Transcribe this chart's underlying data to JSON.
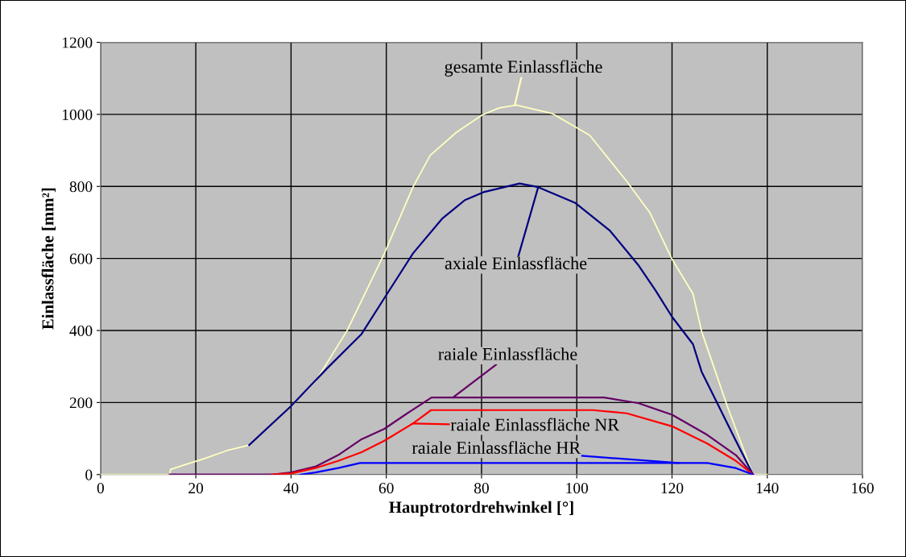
{
  "chart_data": {
    "type": "line",
    "xlabel": "Hauptrotordrehwinkel [°]",
    "ylabel": "Einlassfläche [mm²]",
    "xlim": [
      0,
      160
    ],
    "xticks": [
      0,
      20,
      40,
      60,
      80,
      100,
      120,
      140,
      160
    ],
    "ylim": [
      0,
      1200
    ],
    "yticks": [
      0,
      200,
      400,
      600,
      800,
      1000,
      1200
    ],
    "grid": true,
    "marker": "none",
    "line_style": "solid",
    "series": [
      {
        "color": "#ffffc0",
        "x": [
          0,
          14.5,
          14.7,
          17.4,
          22.2,
          26.4,
          31.2,
          35.5,
          40,
          45.1,
          51.7,
          59.6,
          65.6,
          69.2,
          74.7,
          80.1,
          83.7,
          87.3,
          94.9,
          102.7,
          110.5,
          115.4,
          120,
          124.4,
          126.2,
          131.6,
          137,
          140
        ],
        "values": [
          0,
          0,
          14,
          26,
          46,
          66,
          82,
          134,
          190,
          258,
          398,
          614,
          798,
          886,
          950,
          998,
          1018,
          1026,
          1002,
          942,
          814,
          726,
          598,
          502,
          398,
          190,
          0,
          0
        ]
      },
      {
        "color": "#000080",
        "x": [
          31.2,
          40,
          47.5,
          54.8,
          59.6,
          65.6,
          71.7,
          76.5,
          80.4,
          88,
          91.9,
          99.7,
          106.9,
          112.9,
          116.6,
          120,
          124.4,
          126.2,
          129.8,
          133.4,
          137
        ],
        "values": [
          82,
          190,
          294,
          390,
          490,
          614,
          710,
          762,
          784,
          808,
          798,
          754,
          678,
          582,
          510,
          438,
          362,
          286,
          190,
          94,
          0
        ]
      },
      {
        "color": "#660066",
        "x": [
          14.5,
          36,
          40,
          45.1,
          49.9,
          54.8,
          59.6,
          64.4,
          69.5,
          105.7,
          113,
          120,
          127.4,
          133.4,
          137
        ],
        "values": [
          0,
          0,
          6,
          22,
          54,
          98,
          127,
          170,
          214,
          214,
          198,
          166,
          110,
          54,
          0
        ]
      },
      {
        "color": "#ff0000",
        "x": [
          36,
          40,
          45.1,
          49.9,
          54.8,
          59.6,
          65.6,
          69.4,
          103.3,
          110.5,
          120,
          127.4,
          133.4,
          137
        ],
        "values": [
          0,
          3,
          18,
          38,
          62,
          94,
          142,
          179,
          179,
          170,
          134,
          86,
          38,
          0
        ]
      },
      {
        "color": "#0000ff",
        "x": [
          42,
          45.1,
          49.9,
          54.5,
          127.4,
          133.4,
          137
        ],
        "values": [
          0,
          6,
          18,
          32,
          32,
          18,
          0
        ]
      }
    ],
    "annotations": [
      {
        "text": "gesamte Einlassfläche",
        "x": 87,
        "y": 1026
      },
      {
        "text": "axiale Einlassfläche",
        "x": 91.9,
        "y": 798
      },
      {
        "text": "raiale Einlassfläche",
        "x": 74,
        "y": 214
      },
      {
        "text": "raiale Einlassfläche NR",
        "x": 65.6,
        "y": 142
      },
      {
        "text": "raiale Einlassfläche HR",
        "x": 121.4,
        "y": 32
      }
    ]
  }
}
